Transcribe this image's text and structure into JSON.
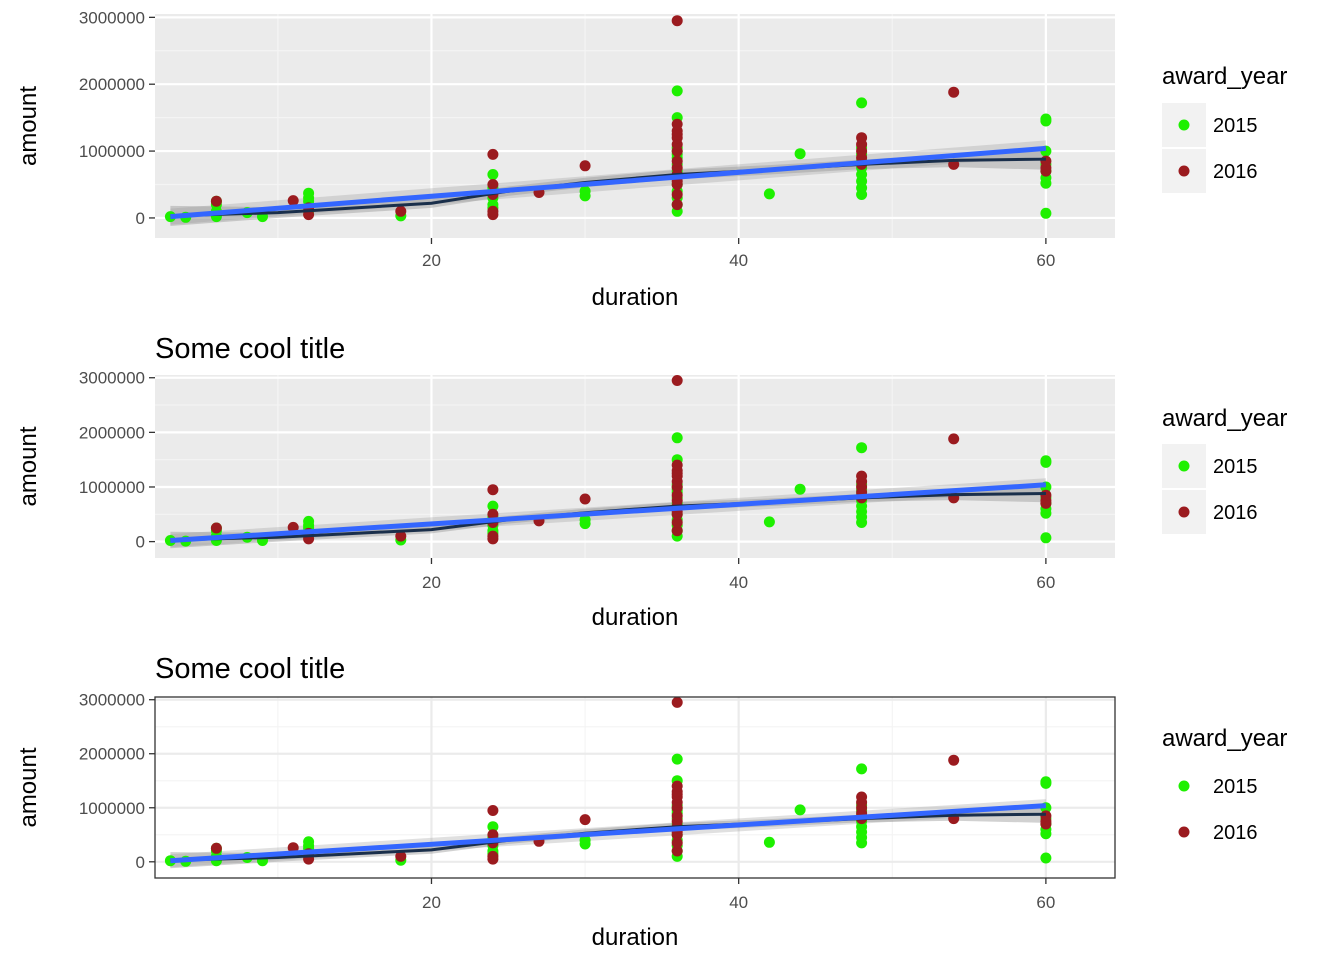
{
  "chart_data": [
    {
      "type": "scatter",
      "theme": "grey",
      "title": "",
      "xlabel": "duration",
      "ylabel": "amount",
      "xlim": [
        2,
        64.5
      ],
      "ylim": [
        -300000,
        3050000
      ],
      "x_ticks": [
        20,
        40,
        60
      ],
      "y_ticks": [
        0,
        1000000,
        2000000,
        3000000
      ],
      "y_tick_labels": [
        "0",
        "1000000",
        "2000000",
        "3000000"
      ],
      "legend": {
        "title": "award_year",
        "position": "right",
        "entries": [
          "2015",
          "2016"
        ]
      }
    },
    {
      "type": "scatter",
      "theme": "grey",
      "title": "Some cool title",
      "xlabel": "duration",
      "ylabel": "amount",
      "xlim": [
        2,
        64.5
      ],
      "ylim": [
        -300000,
        3050000
      ],
      "x_ticks": [
        20,
        40,
        60
      ],
      "y_ticks": [
        0,
        1000000,
        2000000,
        3000000
      ],
      "y_tick_labels": [
        "0",
        "1000000",
        "2000000",
        "3000000"
      ],
      "legend": {
        "title": "award_year",
        "position": "right",
        "entries": [
          "2015",
          "2016"
        ]
      }
    },
    {
      "type": "scatter",
      "theme": "bw",
      "title": "Some cool title",
      "xlabel": "duration",
      "ylabel": "amount",
      "xlim": [
        2,
        64.5
      ],
      "ylim": [
        -300000,
        3050000
      ],
      "x_ticks": [
        20,
        40,
        60
      ],
      "y_ticks": [
        0,
        1000000,
        2000000,
        3000000
      ],
      "y_tick_labels": [
        "0",
        "1000000",
        "2000000",
        "3000000"
      ],
      "legend": {
        "title": "award_year",
        "position": "right",
        "entries": [
          "2015",
          "2016"
        ]
      }
    }
  ],
  "series": [
    {
      "name": "2015",
      "color": "#1ef000"
    },
    {
      "name": "2016",
      "color": "#9b1b1f"
    }
  ],
  "points": {
    "2015": [
      [
        3,
        20000
      ],
      [
        4,
        10000
      ],
      [
        6,
        20000
      ],
      [
        6,
        100000
      ],
      [
        6,
        200000
      ],
      [
        6,
        250000
      ],
      [
        8,
        80000
      ],
      [
        9,
        20000
      ],
      [
        12,
        100000
      ],
      [
        12,
        250000
      ],
      [
        12,
        300000
      ],
      [
        12,
        370000
      ],
      [
        18,
        30000
      ],
      [
        24,
        150000
      ],
      [
        24,
        200000
      ],
      [
        24,
        300000
      ],
      [
        24,
        450000
      ],
      [
        24,
        650000
      ],
      [
        30,
        330000
      ],
      [
        30,
        400000
      ],
      [
        36,
        100000
      ],
      [
        36,
        200000
      ],
      [
        36,
        300000
      ],
      [
        36,
        400000
      ],
      [
        36,
        500000
      ],
      [
        36,
        600000
      ],
      [
        36,
        700000
      ],
      [
        36,
        800000
      ],
      [
        36,
        900000
      ],
      [
        36,
        950000
      ],
      [
        36,
        1000000
      ],
      [
        36,
        1050000
      ],
      [
        36,
        1500000
      ],
      [
        36,
        1900000
      ],
      [
        42,
        360000
      ],
      [
        44,
        960000
      ],
      [
        48,
        350000
      ],
      [
        48,
        450000
      ],
      [
        48,
        550000
      ],
      [
        48,
        650000
      ],
      [
        48,
        750000
      ],
      [
        48,
        850000
      ],
      [
        48,
        950000
      ],
      [
        48,
        1050000
      ],
      [
        48,
        1720000
      ],
      [
        60,
        70000
      ],
      [
        60,
        520000
      ],
      [
        60,
        600000
      ],
      [
        60,
        700000
      ],
      [
        60,
        800000
      ],
      [
        60,
        1000000
      ],
      [
        60,
        1450000
      ],
      [
        60,
        1480000
      ]
    ],
    "2016": [
      [
        6,
        250000
      ],
      [
        11,
        260000
      ],
      [
        12,
        50000
      ],
      [
        12,
        150000
      ],
      [
        18,
        100000
      ],
      [
        24,
        50000
      ],
      [
        24,
        100000
      ],
      [
        24,
        350000
      ],
      [
        24,
        500000
      ],
      [
        24,
        950000
      ],
      [
        27,
        380000
      ],
      [
        30,
        780000
      ],
      [
        36,
        200000
      ],
      [
        36,
        350000
      ],
      [
        36,
        500000
      ],
      [
        36,
        550000
      ],
      [
        36,
        650000
      ],
      [
        36,
        750000
      ],
      [
        36,
        850000
      ],
      [
        36,
        1000000
      ],
      [
        36,
        1100000
      ],
      [
        36,
        1200000
      ],
      [
        36,
        1250000
      ],
      [
        36,
        1300000
      ],
      [
        36,
        1400000
      ],
      [
        36,
        2950000
      ],
      [
        48,
        800000
      ],
      [
        48,
        900000
      ],
      [
        48,
        1000000
      ],
      [
        48,
        1100000
      ],
      [
        48,
        1200000
      ],
      [
        54,
        800000
      ],
      [
        54,
        1880000
      ],
      [
        60,
        700000
      ],
      [
        60,
        750000
      ],
      [
        60,
        850000
      ]
    ]
  },
  "smooth": {
    "loess": [
      [
        3,
        30000
      ],
      [
        10,
        80000
      ],
      [
        20,
        220000
      ],
      [
        25,
        400000
      ],
      [
        30,
        530000
      ],
      [
        36,
        650000
      ],
      [
        42,
        720000
      ],
      [
        48,
        800000
      ],
      [
        54,
        860000
      ],
      [
        60,
        880000
      ]
    ],
    "linear": [
      [
        3,
        20000
      ],
      [
        60,
        1040000
      ]
    ],
    "band_halfwidth": [
      [
        3,
        150000
      ],
      [
        10,
        80000
      ],
      [
        20,
        70000
      ],
      [
        30,
        70000
      ],
      [
        36,
        70000
      ],
      [
        42,
        70000
      ],
      [
        48,
        70000
      ],
      [
        54,
        100000
      ],
      [
        60,
        160000
      ]
    ],
    "line_color": "#3366ff",
    "loess_color": "#1a2f4b",
    "band_color": "#999999"
  }
}
